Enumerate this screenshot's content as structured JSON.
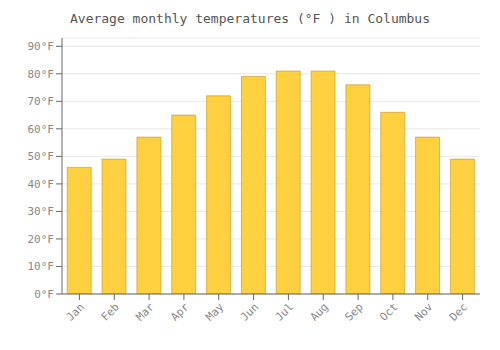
{
  "chart_data": {
    "type": "bar",
    "title": "Average monthly temperatures (°F ) in Columbus",
    "categories": [
      "Jan",
      "Feb",
      "Mar",
      "Apr",
      "May",
      "Jun",
      "Jul",
      "Aug",
      "Sep",
      "Oct",
      "Nov",
      "Dec"
    ],
    "values": [
      46,
      49,
      57,
      65,
      72,
      79,
      81,
      81,
      76,
      66,
      57,
      49
    ],
    "color": "#FFD040",
    "ylim": [
      0,
      93
    ],
    "yticks": [
      {
        "value": 0,
        "label": "0°F"
      },
      {
        "value": 10,
        "label": "10°F"
      },
      {
        "value": 20,
        "label": "20°F"
      },
      {
        "value": 30,
        "label": "30°F"
      },
      {
        "value": 40,
        "label": "40°F"
      },
      {
        "value": 50,
        "label": "50°F"
      },
      {
        "value": 60,
        "label": "60°F"
      },
      {
        "value": 70,
        "label": "70°F"
      },
      {
        "value": 80,
        "label": "80°F"
      },
      {
        "value": 90,
        "label": "90°F"
      }
    ],
    "grid": true
  }
}
